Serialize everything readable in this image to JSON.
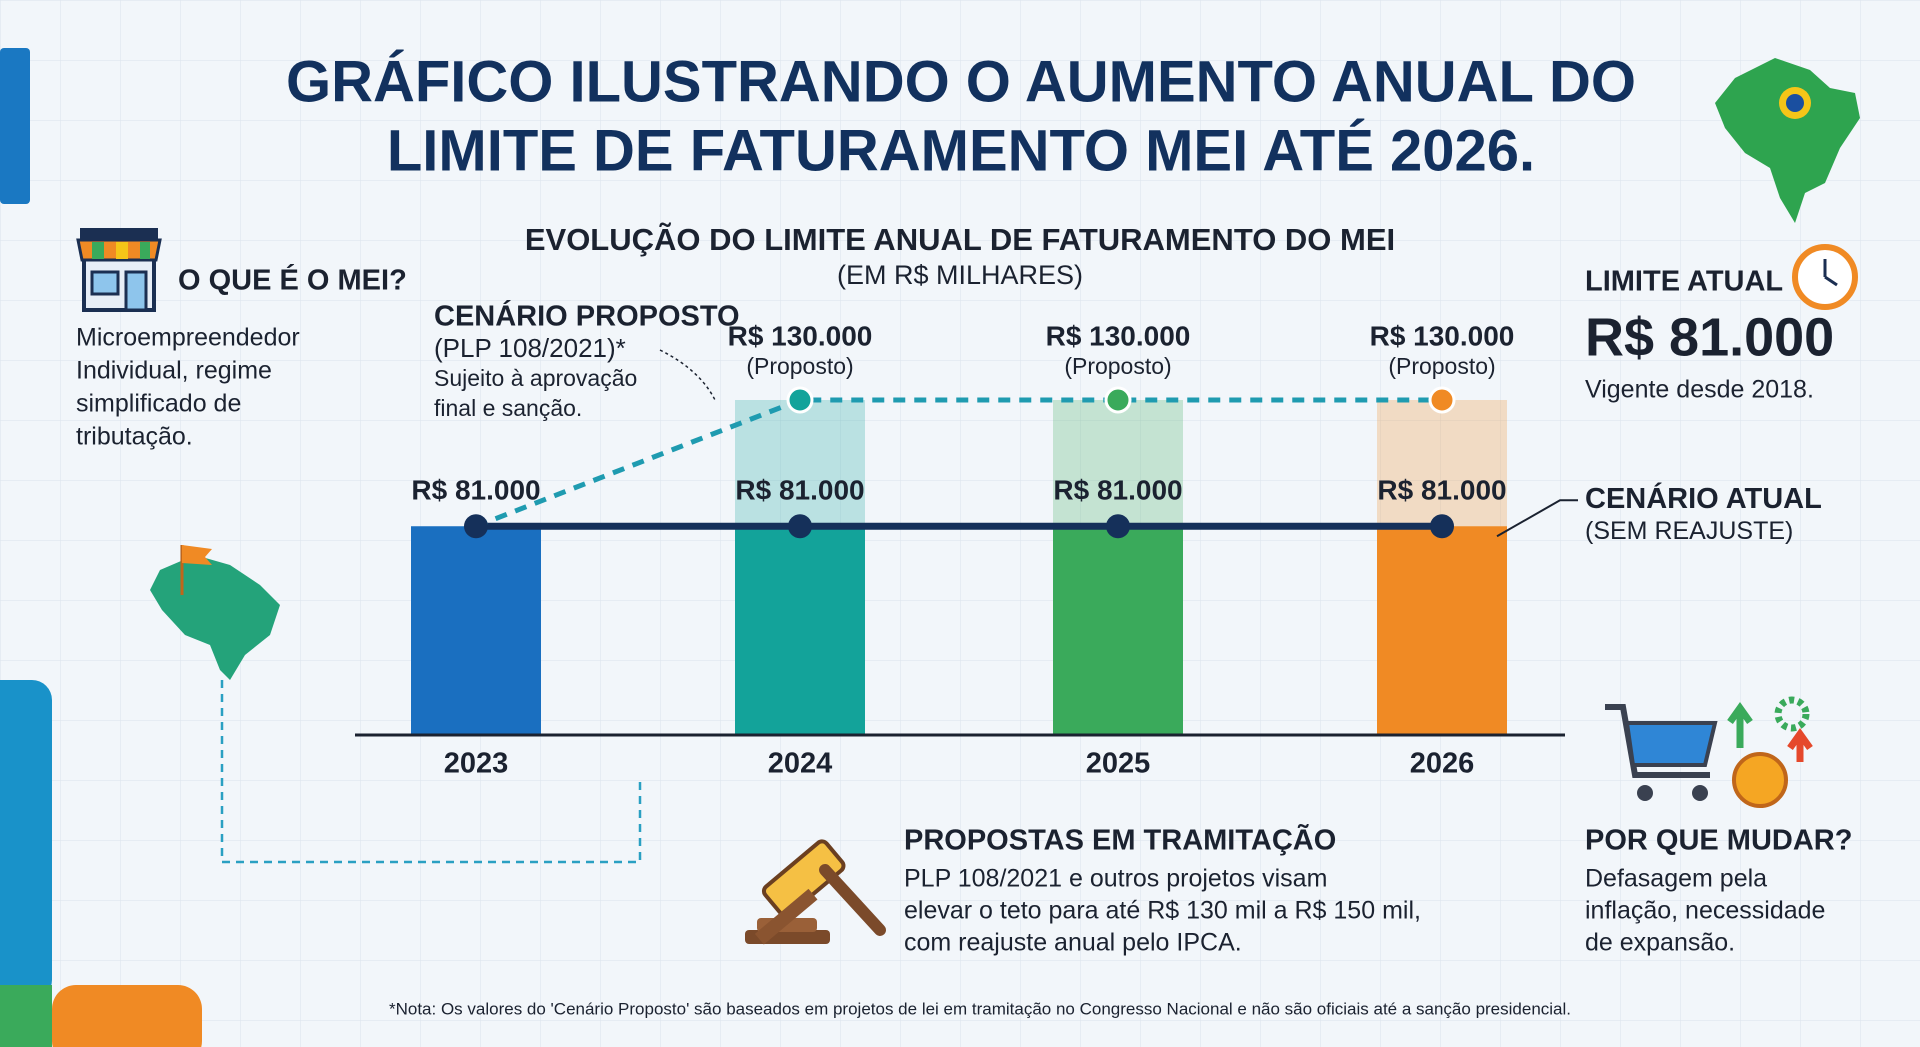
{
  "title_lines": [
    "GRÁFICO ILUSTRANDO O AUMENTO ANUAL DO",
    "LIMITE DE FATURAMENTO MEI ATÉ 2026."
  ],
  "what_is": {
    "heading": "O QUE É O MEI?",
    "lines": [
      "Microempreendedor",
      "Individual, regime",
      "simplificado de",
      "tributação."
    ]
  },
  "current_limit": {
    "heading": "LIMITE ATUAL",
    "value": "R$ 81.000",
    "since": "Vigente desde 2018."
  },
  "chart_data": {
    "type": "bar",
    "title": "EVOLUÇÃO DO LIMITE ANUAL DE FATURAMENTO DO MEI",
    "subtitle": "(EM R$ MILHARES)",
    "categories": [
      "2023",
      "2024",
      "2025",
      "2026"
    ],
    "bar_colors": [
      "#1a6fc0",
      "#13a39a",
      "#3aaa5b",
      "#f08a24"
    ],
    "series": [
      {
        "name": "CENÁRIO ATUAL",
        "detail_lines": [
          "(SEM REAJUSTE)"
        ],
        "color": "#15305a",
        "values": [
          81000,
          81000,
          81000,
          81000
        ],
        "value_labels": [
          "R$ 81.000",
          "R$ 81.000",
          "R$ 81.000",
          "R$ 81.000"
        ]
      },
      {
        "name": "CENÁRIO PROPOSTO",
        "detail_lines": [
          "(PLP 108/2021)*",
          "Sujeito à aprovação",
          "final e sanção."
        ],
        "color": "#1f9bb0",
        "values": [
          81000,
          130000,
          130000,
          130000
        ],
        "value_labels": [
          null,
          "R$ 130.000",
          "R$ 130.000",
          "R$ 130.000"
        ],
        "point_note": "(Proposto)"
      }
    ]
  },
  "proposals": {
    "heading": "PROPOSTAS EM TRAMITAÇÃO",
    "lines": [
      "PLP 108/2021 e outros projetos visam",
      "elevar o teto para até R$ 130 mil a R$ 150 mil,",
      "com reajuste anual pelo IPCA."
    ]
  },
  "why_change": {
    "heading": "POR QUE MUDAR?",
    "lines": [
      "Defasagem pela",
      "inflação, necessidade",
      "de expansão."
    ]
  },
  "footnote": "*Nota: Os valores do 'Cenário Proposto' são baseados em projetos de lei em tramitação no Congresso Nacional e não são oficiais até a sanção presidencial."
}
